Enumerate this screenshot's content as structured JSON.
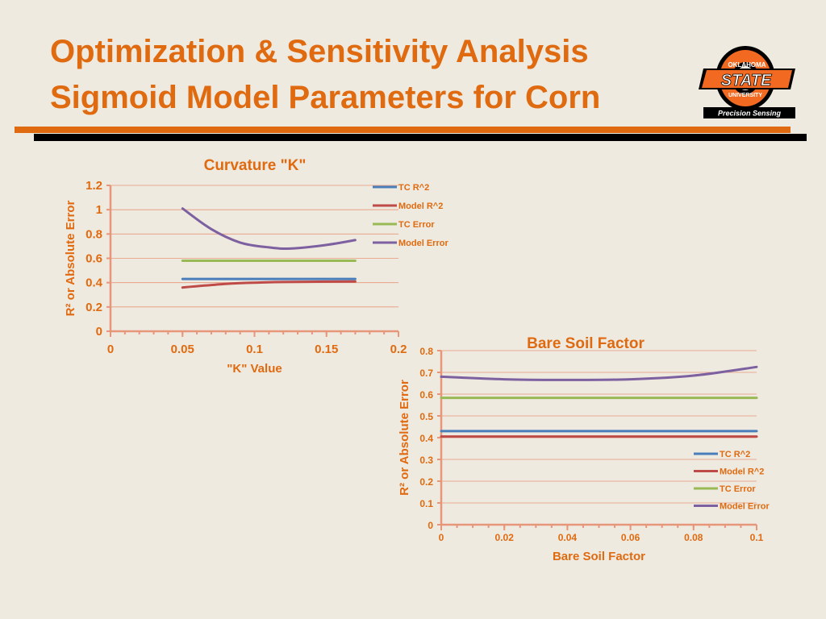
{
  "slide": {
    "title_line1": "Optimization & Sensitivity Analysis",
    "title_line2": "Sigmoid Model Parameters for Corn"
  },
  "logo": {
    "top_text": "OKLAHOMA",
    "main_text": "STATE",
    "sub_text": "UNIVERSITY",
    "banner_text": "Precision Sensing"
  },
  "colors": {
    "title": "#E06A10",
    "axis": "#E8967A",
    "tc_r2": "#4A7EBB",
    "model_r2": "#BE4B48",
    "tc_error": "#98B954",
    "model_error": "#7D60A0"
  },
  "chart_data": [
    {
      "type": "line",
      "title": "Curvature \"K\"",
      "xlabel": "\"K\" Value",
      "ylabel": "R² or Absolute Error",
      "xlim": [
        0,
        0.2
      ],
      "ylim": [
        0,
        1.2
      ],
      "xticks": [
        "0",
        "0.05",
        "0.1",
        "0.15",
        "0.2"
      ],
      "yticks": [
        "0",
        "0.2",
        "0.4",
        "0.6",
        "0.8",
        "1",
        "1.2"
      ],
      "grid": true,
      "legend": "top-right",
      "series": [
        {
          "name": "TC R^2",
          "x": [
            0.05,
            0.1,
            0.17
          ],
          "values": [
            0.43,
            0.43,
            0.43
          ]
        },
        {
          "name": "Model R^2",
          "x": [
            0.05,
            0.08,
            0.1,
            0.12,
            0.17
          ],
          "values": [
            0.36,
            0.39,
            0.4,
            0.405,
            0.41
          ]
        },
        {
          "name": "TC Error",
          "x": [
            0.05,
            0.1,
            0.17
          ],
          "values": [
            0.58,
            0.58,
            0.58
          ]
        },
        {
          "name": "Model Error",
          "x": [
            0.05,
            0.07,
            0.09,
            0.11,
            0.125,
            0.15,
            0.17
          ],
          "values": [
            1.01,
            0.84,
            0.73,
            0.69,
            0.68,
            0.71,
            0.75
          ]
        }
      ]
    },
    {
      "type": "line",
      "title": "Bare Soil Factor",
      "xlabel": "Bare Soil Factor",
      "ylabel": "R² or Absolute Error",
      "xlim": [
        0,
        0.1
      ],
      "ylim": [
        0,
        0.8
      ],
      "xticks": [
        "0",
        "0.02",
        "0.04",
        "0.06",
        "0.08",
        "0.1"
      ],
      "yticks": [
        "0",
        "0.1",
        "0.2",
        "0.3",
        "0.4",
        "0.5",
        "0.6",
        "0.7",
        "0.8"
      ],
      "grid": true,
      "legend": "bottom-right",
      "series": [
        {
          "name": "TC R^2",
          "x": [
            0,
            0.05,
            0.1
          ],
          "values": [
            0.43,
            0.43,
            0.43
          ]
        },
        {
          "name": "Model R^2",
          "x": [
            0,
            0.05,
            0.1
          ],
          "values": [
            0.405,
            0.405,
            0.405
          ]
        },
        {
          "name": "TC Error",
          "x": [
            0,
            0.05,
            0.1
          ],
          "values": [
            0.583,
            0.583,
            0.583
          ]
        },
        {
          "name": "Model Error",
          "x": [
            0,
            0.02,
            0.04,
            0.06,
            0.08,
            0.1
          ],
          "values": [
            0.68,
            0.668,
            0.665,
            0.668,
            0.685,
            0.725
          ]
        }
      ]
    }
  ]
}
